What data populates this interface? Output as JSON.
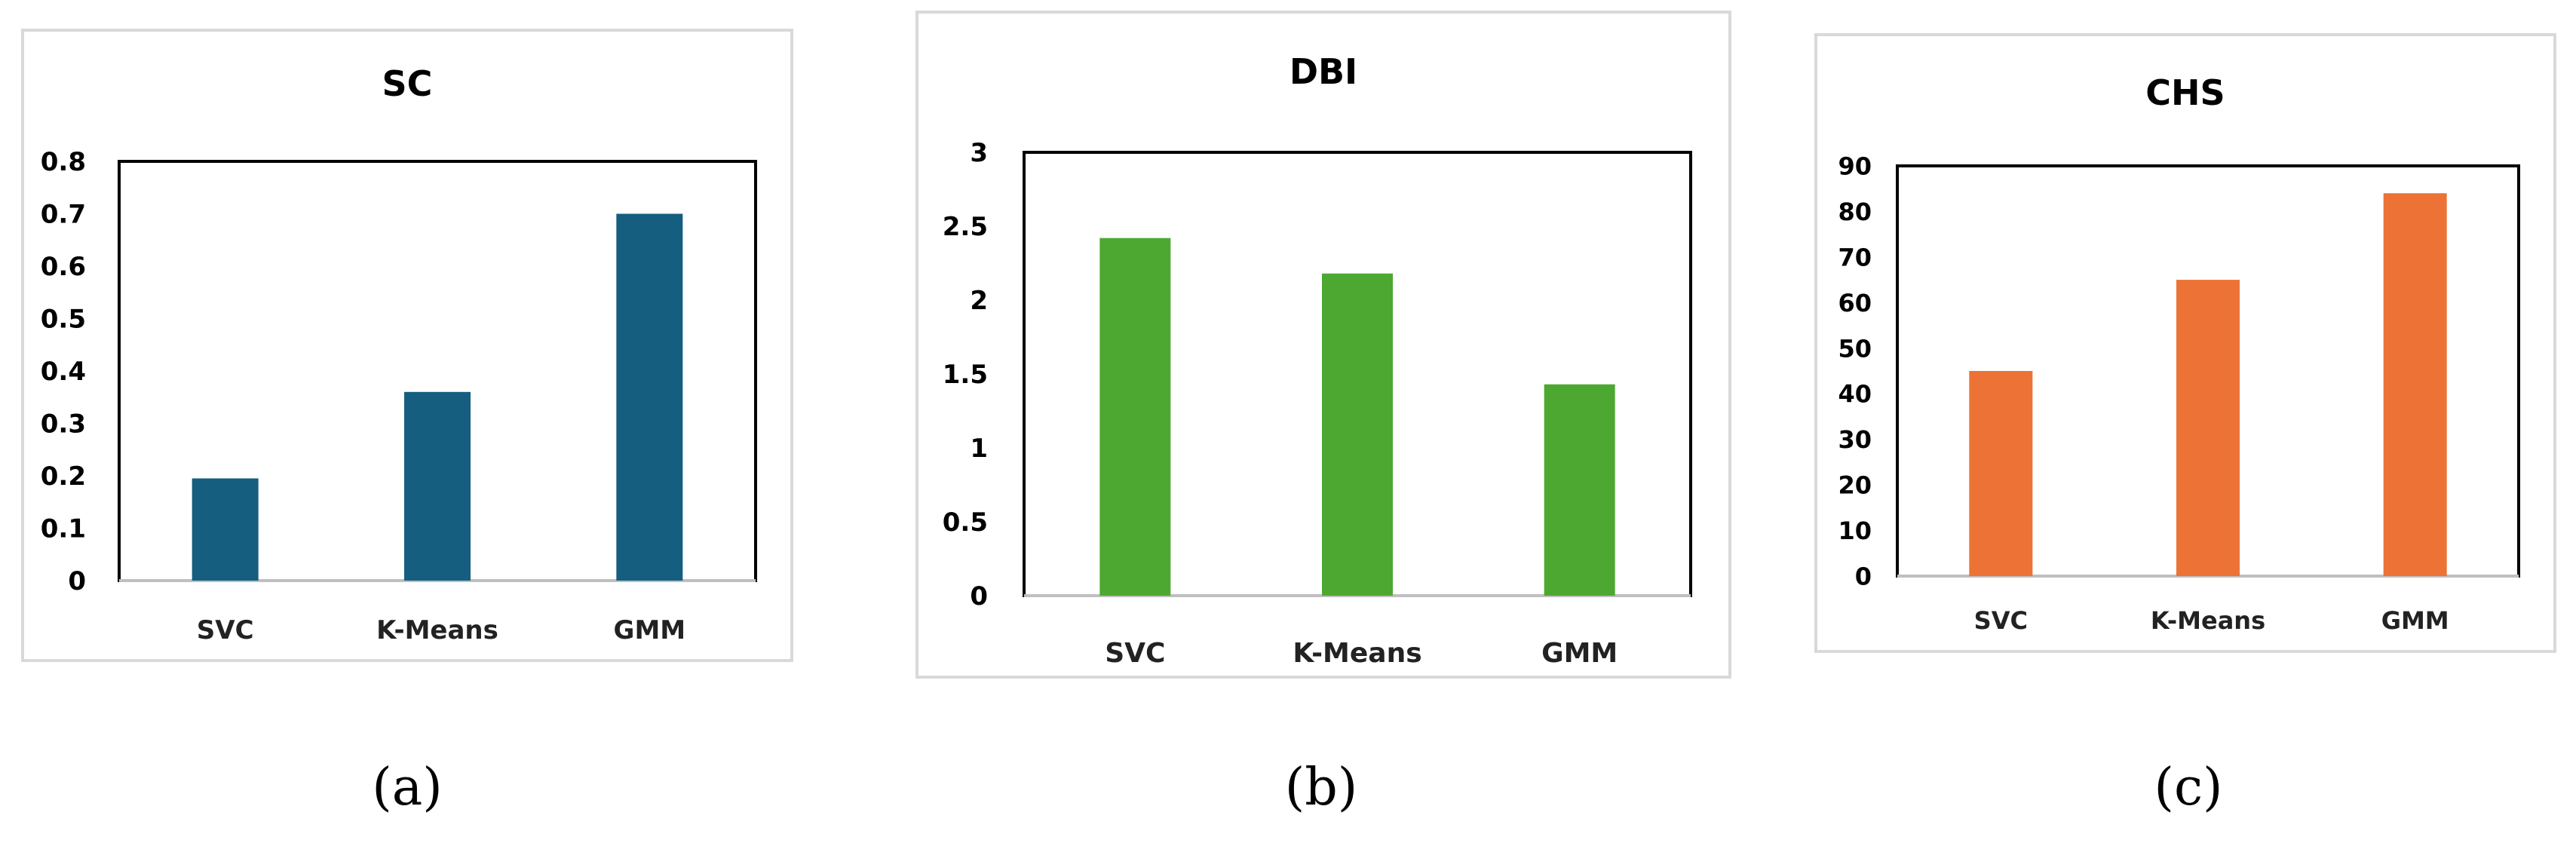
{
  "chart_data": [
    {
      "type": "bar",
      "title": "SC",
      "categories": [
        "SVC",
        "K-Means",
        "GMM"
      ],
      "values": [
        0.195,
        0.36,
        0.7
      ],
      "ylim": [
        0,
        0.8
      ],
      "yticks": [
        "0",
        "0.1",
        "0.2",
        "0.3",
        "0.4",
        "0.5",
        "0.6",
        "0.7",
        "0.8"
      ],
      "color": "#155e80",
      "grid": false,
      "legend": "none",
      "caption": "(a)"
    },
    {
      "type": "bar",
      "title": "DBI",
      "categories": [
        "SVC",
        "K-Means",
        "GMM"
      ],
      "values": [
        2.42,
        2.18,
        1.43
      ],
      "ylim": [
        0,
        3
      ],
      "yticks": [
        "0",
        "0.5",
        "1",
        "1.5",
        "2",
        "2.5",
        "3"
      ],
      "color": "#4da832",
      "grid": false,
      "legend": "none",
      "caption": "(b)"
    },
    {
      "type": "bar",
      "title": "CHS",
      "categories": [
        "SVC",
        "K-Means",
        "GMM"
      ],
      "values": [
        45,
        65,
        84
      ],
      "ylim": [
        0,
        90
      ],
      "yticks": [
        "0",
        "10",
        "20",
        "30",
        "40",
        "50",
        "60",
        "70",
        "80",
        "90"
      ],
      "color": "#ec7235",
      "grid": false,
      "legend": "none",
      "caption": "(c)"
    }
  ]
}
